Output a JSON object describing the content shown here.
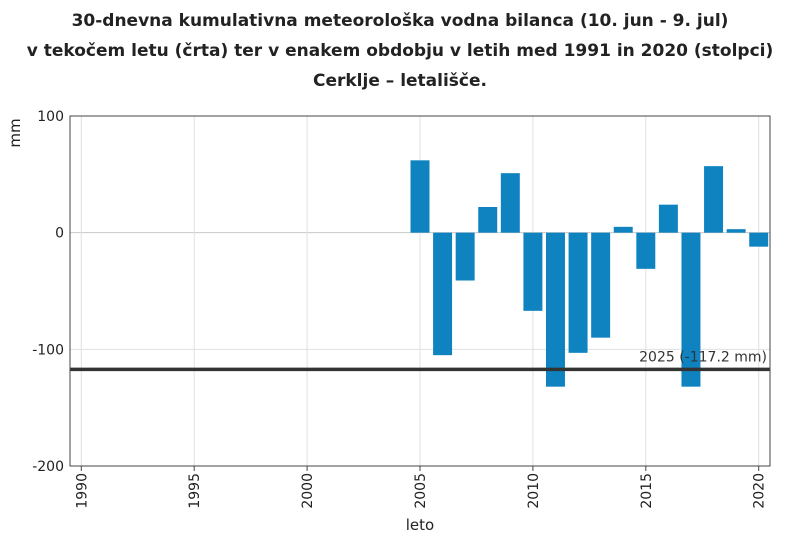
{
  "title_lines": [
    "30-dnevna kumulativna meteorološka vodna bilanca (10. jun - 9. jul)",
    "v tekočem letu (črta) ter v enakem obdobju v letih med 1991 in 2020 (stolpci)",
    "Cerklje – letališče."
  ],
  "chart_data": {
    "type": "bar",
    "xlabel": "leto",
    "ylabel": "mm",
    "xlim": [
      1989.5,
      2020.5
    ],
    "ylim": [
      -200,
      100
    ],
    "xticks": [
      "1990",
      "1995",
      "2000",
      "2005",
      "2010",
      "2015",
      "2020"
    ],
    "yticks": [
      "100",
      "0",
      "-100",
      "-200"
    ],
    "grid": true,
    "bar_color": "#0e83c0",
    "years": [
      2005,
      2006,
      2007,
      2008,
      2009,
      2010,
      2011,
      2012,
      2013,
      2014,
      2015,
      2016,
      2017,
      2018,
      2019,
      2020
    ],
    "values": [
      62,
      -105,
      -41,
      22,
      51,
      -67,
      -132,
      -103,
      -90,
      5,
      -31,
      24,
      -132,
      57,
      3,
      -12
    ],
    "reference_line": {
      "year_label": "2025",
      "value": -117.2,
      "label": "2025 (-117.2 mm)",
      "color": "#333333"
    }
  }
}
